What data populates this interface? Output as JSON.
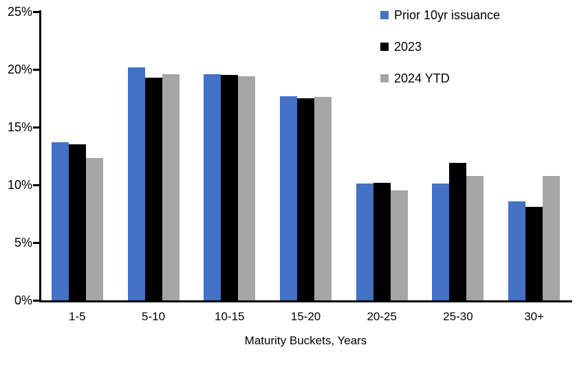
{
  "chart_data": {
    "type": "bar",
    "title": "",
    "xlabel": "Maturity Buckets, Years",
    "ylabel": "",
    "ylim": [
      0,
      25
    ],
    "ytick_step": 5,
    "ytick_labels": [
      "0%",
      "5%",
      "10%",
      "15%",
      "20%",
      "25%"
    ],
    "categories": [
      "1-5",
      "5-10",
      "10-15",
      "15-20",
      "20-25",
      "25-30",
      "30+"
    ],
    "series": [
      {
        "name": "Prior 10yr issuance",
        "color": "#4472C4",
        "values": [
          13.7,
          20.2,
          19.6,
          17.7,
          10.1,
          10.1,
          8.6
        ]
      },
      {
        "name": "2023",
        "color": "#000000",
        "values": [
          13.5,
          19.3,
          19.5,
          17.5,
          10.2,
          11.9,
          8.1
        ]
      },
      {
        "name": "2024 YTD",
        "color": "#A6A6A6",
        "values": [
          12.3,
          19.6,
          19.4,
          17.6,
          9.5,
          10.8,
          10.8
        ]
      }
    ],
    "legend_position": "top-right",
    "grid": false,
    "background": "#FFFFFF",
    "axis_color": "#000000"
  }
}
